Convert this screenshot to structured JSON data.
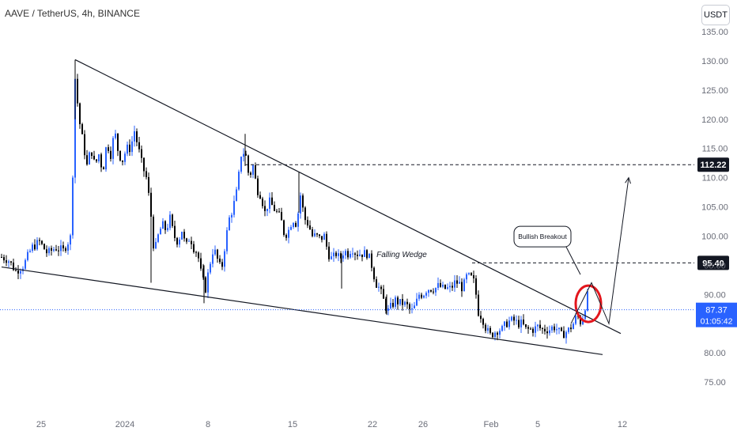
{
  "header": {
    "symbol": "AAVE / TetherUS, 4h, BINANCE",
    "currency": "USDT"
  },
  "chart_data": {
    "type": "candlestick",
    "price_axis": {
      "min": 75,
      "max": 135,
      "ticks": [
        "135.00",
        "130.00",
        "125.00",
        "120.00",
        "115.00",
        "110.00",
        "105.00",
        "100.00",
        "95.00",
        "90.00",
        "80.00",
        "75.00"
      ]
    },
    "time_axis": {
      "ticks": [
        "25",
        "2024",
        "8",
        "15",
        "22",
        "26",
        "Feb",
        "5",
        "12"
      ]
    },
    "price_path": [
      [
        0,
        96.5
      ],
      [
        10,
        96
      ],
      [
        20,
        94
      ],
      [
        30,
        95
      ],
      [
        40,
        98
      ],
      [
        50,
        99
      ],
      [
        60,
        97
      ],
      [
        70,
        98
      ],
      [
        80,
        97.5
      ],
      [
        90,
        100
      ],
      [
        95,
        127
      ],
      [
        100,
        120
      ],
      [
        105,
        116
      ],
      [
        110,
        112
      ],
      [
        115,
        115
      ],
      [
        120,
        112
      ],
      [
        125,
        114
      ],
      [
        130,
        111
      ],
      [
        135,
        116
      ],
      [
        140,
        114
      ],
      [
        145,
        118
      ],
      [
        150,
        114
      ],
      [
        155,
        113
      ],
      [
        160,
        115
      ],
      [
        165,
        115
      ],
      [
        170,
        118
      ],
      [
        175,
        115
      ],
      [
        180,
        112
      ],
      [
        185,
        110
      ],
      [
        190,
        105
      ],
      [
        195,
        97
      ],
      [
        200,
        100
      ],
      [
        205,
        102
      ],
      [
        210,
        101
      ],
      [
        215,
        103
      ],
      [
        220,
        100
      ],
      [
        225,
        99
      ],
      [
        230,
        101
      ],
      [
        235,
        98
      ],
      [
        240,
        100
      ],
      [
        245,
        98
      ],
      [
        250,
        97
      ],
      [
        255,
        93
      ],
      [
        260,
        91
      ],
      [
        265,
        95
      ],
      [
        270,
        98
      ],
      [
        275,
        96
      ],
      [
        280,
        94
      ],
      [
        285,
        99
      ],
      [
        290,
        103
      ],
      [
        295,
        105
      ],
      [
        300,
        108
      ],
      [
        305,
        114
      ],
      [
        310,
        114.5
      ],
      [
        315,
        110
      ],
      [
        320,
        112
      ],
      [
        325,
        108
      ],
      [
        330,
        107
      ],
      [
        335,
        104
      ],
      [
        340,
        106
      ],
      [
        345,
        105
      ],
      [
        350,
        104
      ],
      [
        355,
        103
      ],
      [
        360,
        100
      ],
      [
        365,
        101
      ],
      [
        370,
        103
      ],
      [
        375,
        102
      ],
      [
        380,
        107
      ],
      [
        385,
        103
      ],
      [
        390,
        102
      ],
      [
        395,
        100
      ],
      [
        400,
        100
      ],
      [
        405,
        99.5
      ],
      [
        410,
        100
      ],
      [
        415,
        97
      ],
      [
        420,
        96
      ],
      [
        425,
        97
      ],
      [
        430,
        96
      ],
      [
        435,
        97.5
      ],
      [
        440,
        97
      ],
      [
        445,
        98
      ],
      [
        450,
        97
      ],
      [
        455,
        97
      ],
      [
        460,
        97
      ],
      [
        465,
        97
      ],
      [
        470,
        95
      ],
      [
        475,
        92
      ],
      [
        480,
        91
      ],
      [
        485,
        89
      ],
      [
        490,
        87
      ],
      [
        495,
        88
      ],
      [
        500,
        89
      ],
      [
        505,
        88.5
      ],
      [
        510,
        88.5
      ],
      [
        515,
        88
      ],
      [
        520,
        87
      ],
      [
        525,
        88
      ],
      [
        530,
        90
      ],
      [
        535,
        90
      ],
      [
        540,
        91
      ],
      [
        545,
        91
      ],
      [
        550,
        91
      ],
      [
        555,
        91.5
      ],
      [
        560,
        91
      ],
      [
        565,
        91
      ],
      [
        570,
        91
      ],
      [
        575,
        92
      ],
      [
        580,
        92
      ],
      [
        585,
        91
      ],
      [
        590,
        93
      ],
      [
        595,
        93
      ],
      [
        600,
        92
      ],
      [
        605,
        87
      ],
      [
        610,
        86
      ],
      [
        615,
        84
      ],
      [
        620,
        83
      ],
      [
        625,
        83.5
      ],
      [
        630,
        84
      ],
      [
        635,
        84
      ],
      [
        640,
        85
      ],
      [
        645,
        85.5
      ],
      [
        650,
        85.5
      ],
      [
        655,
        85
      ],
      [
        660,
        85
      ],
      [
        665,
        84
      ],
      [
        670,
        84
      ],
      [
        675,
        84
      ],
      [
        680,
        84.5
      ],
      [
        685,
        84
      ],
      [
        690,
        84
      ],
      [
        695,
        84
      ],
      [
        700,
        84.5
      ],
      [
        705,
        84
      ],
      [
        710,
        83
      ],
      [
        715,
        83.5
      ],
      [
        720,
        84
      ],
      [
        725,
        85
      ],
      [
        730,
        86.5
      ],
      [
        735,
        85
      ],
      [
        740,
        88
      ],
      [
        745,
        91
      ]
    ],
    "annotations": [
      {
        "type": "trendline",
        "label": "",
        "points": [
          [
            95,
            130.2
          ],
          [
            785,
            83.3
          ]
        ]
      },
      {
        "type": "trendline",
        "label": "",
        "points": [
          [
            2,
            94.7
          ],
          [
            762,
            79.7
          ]
        ]
      },
      {
        "type": "text",
        "label": "Falling Wedge",
        "at": [
          508,
          96.4
        ]
      },
      {
        "type": "callout",
        "label": "Bullish Breakout",
        "at": [
          686,
          99.9
        ]
      },
      {
        "type": "projection",
        "label": "",
        "points": [
          [
            722,
            85
          ],
          [
            748,
            92
          ],
          [
            770,
            85
          ],
          [
            795,
            110
          ]
        ]
      }
    ],
    "levels": [
      {
        "price": 112.22,
        "label": "112.22",
        "from_x": 310
      },
      {
        "price": 95.4,
        "label": "95.40",
        "from_x": 597
      }
    ],
    "last_price": {
      "price": 87.37,
      "label": "87.37",
      "countdown": "01:05:42"
    }
  }
}
